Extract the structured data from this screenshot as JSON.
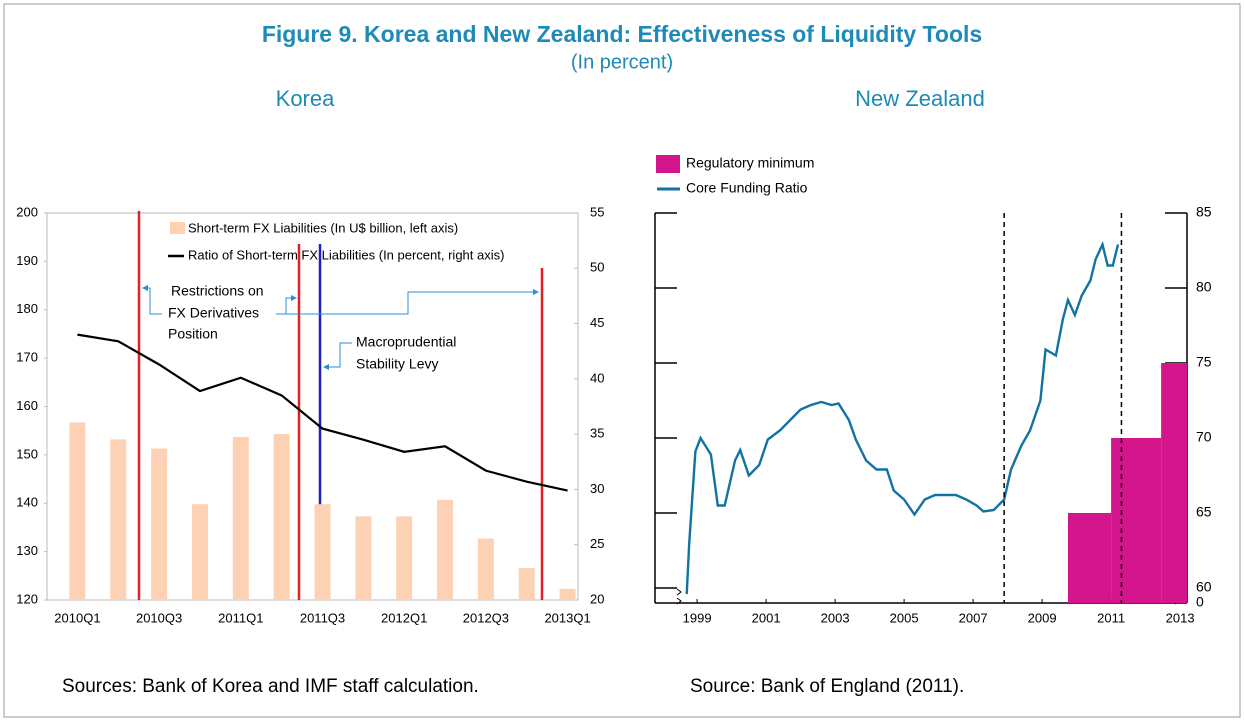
{
  "title": "Figure 9. Korea and New Zealand: Effectiveness of Liquidity Tools",
  "subtitle": "(In percent)",
  "chart_data": [
    {
      "type": "combo",
      "title": "Korea",
      "categories": [
        "2010Q1",
        null,
        "2010Q3",
        null,
        "2011Q1",
        null,
        "2011Q3",
        null,
        "2012Q1",
        null,
        "2012Q3",
        null,
        "2013Q1"
      ],
      "series": [
        {
          "name": "Short-term FX Liabilities (In U$ billion, left axis)",
          "type": "bar",
          "axis": "y",
          "color": "#fdd1b3",
          "values": [
            156.7,
            153.2,
            151.3,
            139.8,
            153.7,
            154.3,
            139.8,
            137.3,
            137.3,
            140.7,
            132.7,
            126.6,
            122.3
          ]
        },
        {
          "name": "Ratio of Short-term FX Liabilities (In percent, right axis)",
          "type": "line",
          "axis": "y2",
          "color": "#000000",
          "values": [
            44.0,
            43.4,
            41.3,
            38.9,
            40.1,
            38.5,
            35.5,
            34.5,
            33.4,
            33.9,
            31.7,
            30.7,
            29.9
          ]
        }
      ],
      "ylim": [
        120,
        200
      ],
      "yticks": [
        120,
        130,
        140,
        150,
        160,
        170,
        180,
        190,
        200
      ],
      "y2lim": [
        20,
        55
      ],
      "y2ticks": [
        20,
        25,
        30,
        35,
        40,
        45,
        50,
        55
      ],
      "annotations": [
        [
          "Restrictions on",
          "FX Derivatives",
          "Position"
        ],
        [
          "Macroprudential",
          "Stability Levy"
        ]
      ],
      "source": "Sources: Bank of Korea and IMF staff calculation."
    },
    {
      "type": "line",
      "title": "New Zealand",
      "series": [
        {
          "name": "Regulatory minimum",
          "type": "step",
          "color": "#d4168c",
          "x_edges": [
            2009.75,
            2011.0,
            2012.45,
            2013.2
          ],
          "values": [
            65,
            70,
            75
          ]
        },
        {
          "name": "Core Funding Ratio",
          "type": "line",
          "color": "#1272a4",
          "x": [
            1998.7,
            1998.77,
            1998.95,
            1999.1,
            1999.4,
            1999.6,
            1999.8,
            2000.1,
            2000.25,
            2000.5,
            2000.8,
            2001.05,
            2001.4,
            2001.7,
            2002.0,
            2002.3,
            2002.6,
            2002.9,
            2003.1,
            2003.4,
            2003.6,
            2003.9,
            2004.2,
            2004.5,
            2004.7,
            2005.0,
            2005.3,
            2005.6,
            2005.9,
            2006.2,
            2006.5,
            2006.8,
            2007.1,
            2007.3,
            2007.6,
            2007.9,
            2008.1,
            2008.4,
            2008.65,
            2008.95,
            2009.1,
            2009.4,
            2009.6,
            2009.75,
            2009.95,
            2010.15,
            2010.4,
            2010.55,
            2010.75,
            2010.9,
            2011.05,
            2011.2
          ],
          "values": [
            59.6,
            62.9,
            69.1,
            70.0,
            68.9,
            65.5,
            65.5,
            68.5,
            69.2,
            67.5,
            68.2,
            69.9,
            70.5,
            71.2,
            71.9,
            72.2,
            72.4,
            72.2,
            72.3,
            71.2,
            69.9,
            68.5,
            67.9,
            67.9,
            66.5,
            65.9,
            64.9,
            65.9,
            66.2,
            66.2,
            66.2,
            65.9,
            65.5,
            65.1,
            65.2,
            65.9,
            67.9,
            69.5,
            70.5,
            72.5,
            75.9,
            75.5,
            77.9,
            79.2,
            78.2,
            79.5,
            80.5,
            81.9,
            82.9,
            81.5,
            81.5,
            82.9
          ]
        }
      ],
      "xlim": [
        1997.78,
        2013.2
      ],
      "xticks": [
        1999,
        2001,
        2003,
        2005,
        2007,
        2009,
        2011,
        2013
      ],
      "ylim": [
        59,
        85
      ],
      "yticks": [
        60,
        65,
        70,
        75,
        80,
        85
      ],
      "axis_break_label": "0",
      "event_lines": [
        2007.9,
        2011.3
      ],
      "source": "Source: Bank of England (2011)."
    }
  ]
}
